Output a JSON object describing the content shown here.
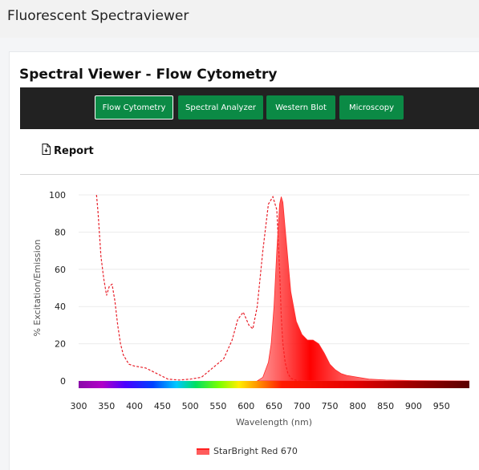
{
  "header": {
    "title": "Fluorescent Spectraviewer"
  },
  "card": {
    "title": "Spectral Viewer - Flow Cytometry"
  },
  "tabs": [
    {
      "label": "Flow Cytometry",
      "active": true
    },
    {
      "label": "Spectral Analyzer",
      "active": false
    },
    {
      "label": "Western Blot",
      "active": false
    },
    {
      "label": "Microscopy",
      "active": false
    }
  ],
  "toolbar": {
    "report_label": "Report",
    "report_icon": "document-icon"
  },
  "colors": {
    "tab_green": "#0b8a45",
    "tabbar_bg": "#222222",
    "emission_fill": "#ff2a2a",
    "excitation_line": "#e8202a"
  },
  "chart_data": {
    "type": "area",
    "title": "",
    "xlabel": "Wavelength (nm)",
    "ylabel": "% Excitation/Emission",
    "xlim": [
      300,
      1000
    ],
    "ylim": [
      0,
      100
    ],
    "x_ticks": [
      300,
      350,
      400,
      450,
      500,
      550,
      600,
      650,
      700,
      750,
      800,
      850,
      900,
      950
    ],
    "y_ticks": [
      0,
      20,
      40,
      60,
      80,
      100
    ],
    "grid": true,
    "legend_position": "bottom",
    "wavelength_color_bar": true,
    "legend": [
      "StarBright Red 670"
    ],
    "series": [
      {
        "name": "StarBright Red 670",
        "kind": "excitation",
        "style": "dashed",
        "x": [
          332,
          335,
          340,
          345,
          350,
          355,
          360,
          365,
          370,
          375,
          380,
          390,
          400,
          420,
          440,
          460,
          480,
          500,
          520,
          540,
          560,
          575,
          585,
          595,
          605,
          612,
          620,
          630,
          640,
          648,
          655,
          660,
          663,
          666,
          670,
          675,
          680,
          690,
          700
        ],
        "y": [
          100,
          90,
          67,
          55,
          46,
          51,
          52,
          43,
          30,
          20,
          14,
          9,
          8,
          7,
          4,
          1,
          0.5,
          1,
          2,
          7,
          12,
          22,
          33,
          37,
          30,
          28,
          40,
          70,
          95,
          99,
          92,
          60,
          35,
          20,
          10,
          4,
          1.5,
          0.3,
          0
        ]
      },
      {
        "name": "StarBright Red 670",
        "kind": "emission",
        "style": "filled",
        "x": [
          620,
          630,
          640,
          645,
          650,
          655,
          660,
          663,
          666,
          670,
          675,
          680,
          690,
          700,
          710,
          720,
          730,
          740,
          750,
          760,
          770,
          780,
          800,
          820,
          850,
          900,
          950,
          1000
        ],
        "y": [
          0,
          2,
          10,
          20,
          40,
          70,
          95,
          99,
          96,
          82,
          65,
          48,
          32,
          25,
          22,
          22,
          20,
          15,
          9,
          6,
          4,
          3,
          2,
          1,
          0.5,
          0.2,
          0.1,
          0
        ]
      }
    ]
  }
}
